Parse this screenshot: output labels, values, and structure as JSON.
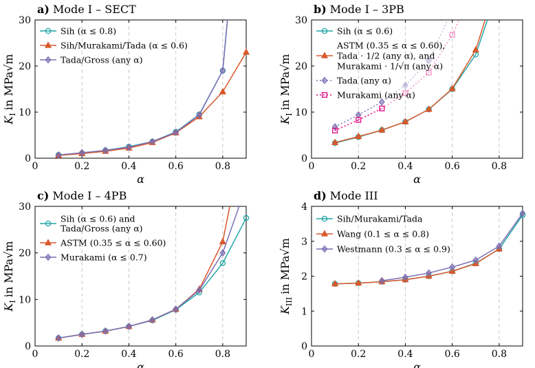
{
  "colors": {
    "teal": "#20a5a5",
    "orange": "#d9582b",
    "purple": "#7b6fb3",
    "pink": "#ee91d3",
    "magenta": "#e4007f",
    "grid": "#c8c8c8"
  },
  "chart_data": [
    {
      "id": "a",
      "type": "line",
      "label_bold": "a)",
      "label_rest": "Mode I – SECT",
      "title": "a) Mode I – SECT",
      "xlabel": "α",
      "ylabel_main": "K",
      "ylabel_sub": "I",
      "ylabel_unit": "in MPa√m",
      "xlim": [
        0,
        0.9
      ],
      "ylim": [
        0,
        30
      ],
      "xticks": [
        0,
        0.2,
        0.4,
        0.6,
        0.8
      ],
      "xtick_labels": [
        "0",
        "0.2",
        "0.4",
        "0.6",
        "0.8"
      ],
      "yticks": [
        0,
        10,
        20,
        30
      ],
      "ytick_labels": [
        "0",
        "10",
        "20",
        "30"
      ],
      "grid_x": [
        0.2,
        0.4,
        0.6,
        0.8
      ],
      "legend_position": "top-left",
      "series": [
        {
          "name": "Sih (α ≤ 0.8)",
          "color_key": "teal",
          "marker": "circle",
          "dash": "solid",
          "x": [
            0.1,
            0.2,
            0.3,
            0.4,
            0.5,
            0.6,
            0.7,
            0.8,
            0.82
          ],
          "y": [
            0.7,
            1.1,
            1.7,
            2.5,
            3.6,
            5.7,
            9.5,
            19.0,
            30
          ]
        },
        {
          "name": "Sih/Murakami/Tada (α ≤ 0.6)",
          "color_key": "orange",
          "marker": "triangle",
          "dash": "solid",
          "x": [
            0.1,
            0.2,
            0.3,
            0.4,
            0.5,
            0.6,
            0.7,
            0.8,
            0.9
          ],
          "y": [
            0.6,
            1.0,
            1.5,
            2.2,
            3.4,
            5.5,
            9.0,
            14.4,
            23.0
          ]
        },
        {
          "name": "Tada/Gross (any α)",
          "color_key": "purple",
          "marker": "diamond",
          "dash": "solid",
          "x": [
            0.1,
            0.2,
            0.3,
            0.4,
            0.5,
            0.6,
            0.7,
            0.8,
            0.82
          ],
          "y": [
            0.7,
            1.2,
            1.7,
            2.4,
            3.6,
            5.6,
            9.4,
            19.0,
            30
          ]
        }
      ]
    },
    {
      "id": "b",
      "type": "line",
      "label_bold": "b)",
      "label_rest": "Mode I – 3PB",
      "title": "b) Mode I – 3PB",
      "xlabel": "α",
      "ylabel_main": "K",
      "ylabel_sub": "I",
      "ylabel_unit": "in MPa√m",
      "xlim": [
        0,
        0.9
      ],
      "ylim": [
        0,
        30
      ],
      "xticks": [
        0,
        0.2,
        0.4,
        0.6,
        0.8
      ],
      "xtick_labels": [
        "0",
        "0.2",
        "0.4",
        "0.6",
        "0.8"
      ],
      "yticks": [
        0,
        10,
        20,
        30
      ],
      "ytick_labels": [
        "0",
        "10",
        "20",
        "30"
      ],
      "grid_x": [
        0.2,
        0.4,
        0.6,
        0.8
      ],
      "legend_position": "top-left",
      "series": [
        {
          "name": "Sih (α ≤ 0.6)",
          "color_key": "teal",
          "marker": "circle",
          "dash": "solid",
          "x": [
            0.1,
            0.2,
            0.3,
            0.4,
            0.5,
            0.6,
            0.7,
            0.75
          ],
          "y": [
            3.3,
            4.6,
            6.1,
            7.9,
            10.6,
            15.0,
            22.5,
            30
          ]
        },
        {
          "name": "ASTM (0.35 ≤ α ≤ 0.60), Tada · 1/2 (any α), and Murakami · 1/√π (any α)",
          "legend_lines": [
            "ASTM (0.35 ≤ α ≤ 0.60),",
            "Tada · 1/2 (any α), and",
            "Murakami · 1/√π (any α)"
          ],
          "color_key": "orange",
          "marker": "triangle",
          "dash": "solid",
          "x": [
            0.1,
            0.2,
            0.3,
            0.4,
            0.5,
            0.6,
            0.7,
            0.74
          ],
          "y": [
            3.4,
            4.7,
            6.1,
            7.9,
            10.6,
            15.1,
            23.5,
            30
          ]
        },
        {
          "name": "Tada (any α)",
          "color_key": "purple",
          "marker": "diamond",
          "dash": "dotted",
          "faded_from": 0.3,
          "x": [
            0.1,
            0.2,
            0.3,
            0.4,
            0.5,
            0.58
          ],
          "y": [
            6.8,
            9.4,
            12.2,
            15.8,
            21.2,
            30
          ]
        },
        {
          "name": "Murakami (any α)",
          "color_key": "magenta",
          "marker": "square",
          "dash": "dotted",
          "faded_from": 0.3,
          "x": [
            0.1,
            0.2,
            0.3,
            0.4,
            0.5,
            0.6,
            0.63
          ],
          "y": [
            6.0,
            8.3,
            10.8,
            14.1,
            18.6,
            26.8,
            30
          ]
        }
      ]
    },
    {
      "id": "c",
      "type": "line",
      "label_bold": "c)",
      "label_rest": "Mode I – 4PB",
      "title": "c) Mode I – 4PB",
      "xlabel": "α",
      "ylabel_main": "K",
      "ylabel_sub": "I",
      "ylabel_unit": "in MPa√m",
      "xlim": [
        0,
        0.9
      ],
      "ylim": [
        0,
        30
      ],
      "xticks": [
        0,
        0.2,
        0.4,
        0.6,
        0.8
      ],
      "xtick_labels": [
        "0",
        "0.2",
        "0.4",
        "0.6",
        "0.8"
      ],
      "yticks": [
        0,
        10,
        20,
        30
      ],
      "ytick_labels": [
        "0",
        "10",
        "20",
        "30"
      ],
      "grid_x": [
        0.2,
        0.4,
        0.6,
        0.8
      ],
      "legend_position": "top-left",
      "series": [
        {
          "name": "Sih (α ≤ 0.6) and Tada/Gross (any α)",
          "legend_lines": [
            "Sih (α ≤ 0.6) and",
            "Tada/Gross (any α)"
          ],
          "color_key": "teal",
          "marker": "circle",
          "dash": "solid",
          "x": [
            0.1,
            0.2,
            0.3,
            0.4,
            0.5,
            0.6,
            0.7,
            0.8,
            0.9
          ],
          "y": [
            1.7,
            2.5,
            3.2,
            4.2,
            5.5,
            7.8,
            11.5,
            17.8,
            27.5
          ]
        },
        {
          "name": "ASTM (0.35 ≤ α ≤ 0.60)",
          "color_key": "orange",
          "marker": "triangle",
          "dash": "solid",
          "x": [
            0.1,
            0.2,
            0.3,
            0.4,
            0.5,
            0.6,
            0.7,
            0.8,
            0.83
          ],
          "y": [
            1.7,
            2.5,
            3.2,
            4.2,
            5.6,
            7.9,
            12.2,
            22.4,
            30
          ]
        },
        {
          "name": "Murakami (α ≤ 0.7)",
          "color_key": "purple",
          "marker": "diamond",
          "dash": "solid",
          "x": [
            0.1,
            0.2,
            0.3,
            0.4,
            0.5,
            0.6,
            0.7,
            0.8,
            0.87
          ],
          "y": [
            1.7,
            2.5,
            3.2,
            4.2,
            5.6,
            7.9,
            12.0,
            20.0,
            30
          ]
        }
      ]
    },
    {
      "id": "d",
      "type": "line",
      "label_bold": "d)",
      "label_rest": "Mode III",
      "title": "d) Mode III",
      "xlabel": "α",
      "ylabel_main": "K",
      "ylabel_sub": "III",
      "ylabel_unit": "in MPa√m",
      "xlim": [
        0,
        0.9
      ],
      "ylim": [
        0,
        4
      ],
      "xticks": [
        0,
        0.2,
        0.4,
        0.6,
        0.8
      ],
      "xtick_labels": [
        "0",
        "0.2",
        "0.4",
        "0.6",
        "0.8"
      ],
      "yticks": [
        0,
        1,
        2,
        3,
        4
      ],
      "ytick_labels": [
        "0",
        "1",
        "2",
        "3",
        "4"
      ],
      "grid_x": [
        0.2,
        0.4,
        0.6,
        0.8
      ],
      "legend_position": "top-left",
      "series": [
        {
          "name": "Sih/Murakami/Tada",
          "color_key": "teal",
          "marker": "circle",
          "dash": "solid",
          "x": [
            0.1,
            0.2,
            0.3,
            0.4,
            0.5,
            0.6,
            0.7,
            0.8,
            0.9
          ],
          "y": [
            1.78,
            1.8,
            1.84,
            1.9,
            2.0,
            2.14,
            2.37,
            2.78,
            3.75
          ]
        },
        {
          "name": "Wang (0.1 ≤ α ≤ 0.8)",
          "color_key": "orange",
          "marker": "triangle",
          "dash": "solid",
          "x": [
            0.1,
            0.2,
            0.3,
            0.4,
            0.5,
            0.6,
            0.7,
            0.8
          ],
          "y": [
            1.78,
            1.8,
            1.84,
            1.9,
            2.0,
            2.14,
            2.36,
            2.78
          ]
        },
        {
          "name": "Westmann (0.3 ≤ α ≤ 0.9)",
          "color_key": "purple",
          "marker": "diamond",
          "dash": "solid",
          "x": [
            0.3,
            0.4,
            0.5,
            0.6,
            0.7,
            0.8,
            0.9
          ],
          "y": [
            1.87,
            1.97,
            2.09,
            2.26,
            2.46,
            2.86,
            3.8
          ]
        }
      ]
    }
  ]
}
